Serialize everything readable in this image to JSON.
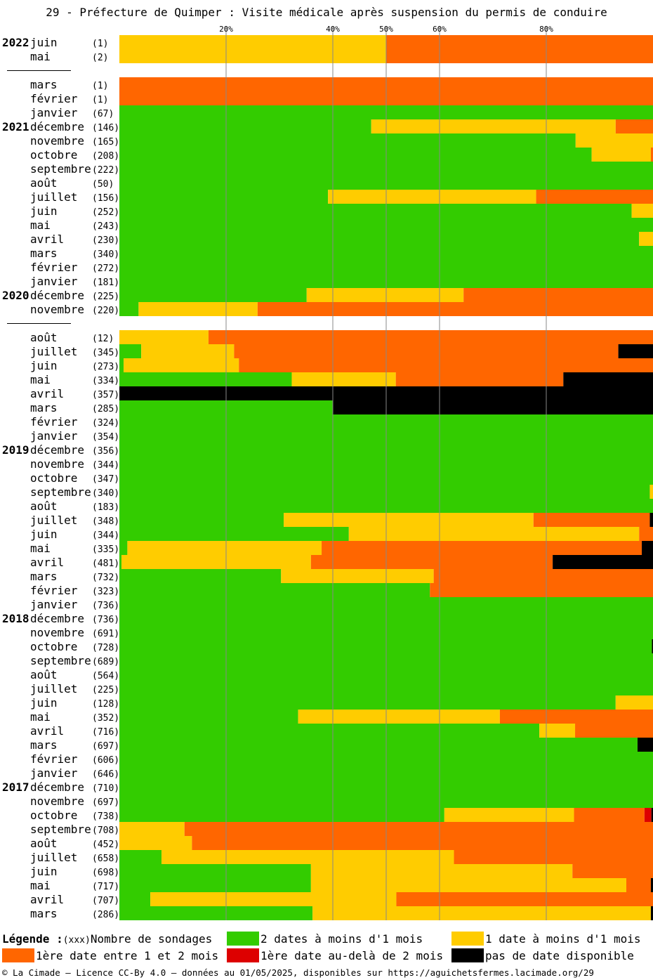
{
  "title": "29 - Préfecture de Quimper : Visite médicale après suspension du permis de conduire",
  "colors": {
    "green": "#33cc00",
    "yellow": "#ffcc00",
    "orange": "#ff6600",
    "red": "#dd0000",
    "black": "#000000",
    "grid": "#888888"
  },
  "legend": {
    "heading": "Légende :",
    "count_symbol": "(xxx)",
    "count_label": "Nombre de sondages",
    "green_label": "2 dates à moins d'1 mois",
    "yellow_label": "1 date à moins d'1 mois",
    "orange_label": "1ère date entre 1 et 2 mois",
    "red_label": "1ère date au-delà de 2 mois",
    "black_label": "pas de date disponible"
  },
  "footer": "© La Cimade – Licence CC-By 4.0 – données au 01/05/2025, disponibles sur https://aguichetsfermes.lacimade.org/29",
  "chart_data": {
    "type": "bar",
    "orientation": "horizontal",
    "stacked": true,
    "unit": "percent",
    "xlim": [
      0,
      100
    ],
    "gridlines": [
      20,
      40,
      50,
      60,
      80
    ],
    "gridline_labels": [
      "20%",
      "40%",
      "50%",
      "60%",
      "80%"
    ],
    "series_order": [
      "green",
      "yellow",
      "orange",
      "red",
      "black"
    ],
    "rows": [
      {
        "year": "2022",
        "month": "juin",
        "count": "(1)",
        "values": [
          0,
          50,
          50,
          0,
          0
        ]
      },
      {
        "month": "mai",
        "count": "(2)",
        "values": [
          0,
          50,
          50,
          0,
          0
        ]
      },
      {
        "gap": true
      },
      {
        "month": "mars",
        "count": "(1)",
        "values": [
          0,
          0,
          100,
          0,
          0
        ]
      },
      {
        "month": "février",
        "count": "(1)",
        "values": [
          0,
          0,
          100,
          0,
          0
        ]
      },
      {
        "month": "janvier",
        "count": "(67)",
        "values": [
          100,
          0,
          0,
          0,
          0
        ]
      },
      {
        "year": "2021",
        "month": "décembre",
        "count": "(146)",
        "values": [
          47.2,
          45.8,
          7.0,
          0,
          0
        ]
      },
      {
        "month": "novembre",
        "count": "(165)",
        "values": [
          85.5,
          14.5,
          0,
          0,
          0
        ]
      },
      {
        "month": "octobre",
        "count": "(208)",
        "values": [
          88.5,
          11.1,
          0.4,
          0,
          0
        ]
      },
      {
        "month": "septembre",
        "count": "(222)",
        "values": [
          100,
          0,
          0,
          0,
          0
        ]
      },
      {
        "month": "août",
        "count": "(50)",
        "values": [
          100,
          0,
          0,
          0,
          0
        ]
      },
      {
        "month": "juillet",
        "count": "(156)",
        "values": [
          39.1,
          39.0,
          21.9,
          0,
          0
        ]
      },
      {
        "month": "juin",
        "count": "(252)",
        "values": [
          96.0,
          4.0,
          0,
          0,
          0
        ]
      },
      {
        "month": "mai",
        "count": "(243)",
        "values": [
          100,
          0,
          0,
          0,
          0
        ]
      },
      {
        "month": "avril",
        "count": "(230)",
        "values": [
          97.4,
          2.6,
          0,
          0,
          0
        ]
      },
      {
        "month": "mars",
        "count": "(340)",
        "values": [
          100,
          0,
          0,
          0,
          0
        ]
      },
      {
        "month": "février",
        "count": "(272)",
        "values": [
          100,
          0,
          0,
          0,
          0
        ]
      },
      {
        "month": "janvier",
        "count": "(181)",
        "values": [
          100,
          0,
          0,
          0,
          0
        ]
      },
      {
        "year": "2020",
        "month": "décembre",
        "count": "(225)",
        "values": [
          35.1,
          29.4,
          35.5,
          0,
          0
        ]
      },
      {
        "month": "novembre",
        "count": "(220)",
        "values": [
          3.6,
          22.3,
          74.1,
          0,
          0
        ]
      },
      {
        "gap": true
      },
      {
        "month": "août",
        "count": "(12)",
        "values": [
          0,
          16.7,
          83.3,
          0,
          0
        ]
      },
      {
        "month": "juillet",
        "count": "(345)",
        "values": [
          4.1,
          17.4,
          72.0,
          0,
          6.5
        ]
      },
      {
        "month": "juin",
        "count": "(273)",
        "values": [
          0.8,
          21.6,
          77.6,
          0,
          0
        ]
      },
      {
        "month": "mai",
        "count": "(334)",
        "values": [
          32.3,
          19.5,
          31.4,
          0,
          16.8
        ]
      },
      {
        "month": "avril",
        "count": "(357)",
        "values": [
          0,
          0,
          0,
          0,
          100
        ]
      },
      {
        "month": "mars",
        "count": "(285)",
        "values": [
          40.0,
          0,
          0,
          0,
          60.0
        ]
      },
      {
        "month": "février",
        "count": "(324)",
        "values": [
          100,
          0,
          0,
          0,
          0
        ]
      },
      {
        "month": "janvier",
        "count": "(354)",
        "values": [
          100,
          0,
          0,
          0,
          0
        ]
      },
      {
        "year": "2019",
        "month": "décembre",
        "count": "(356)",
        "values": [
          100,
          0,
          0,
          0,
          0
        ]
      },
      {
        "month": "novembre",
        "count": "(344)",
        "values": [
          100,
          0,
          0,
          0,
          0
        ]
      },
      {
        "month": "octobre",
        "count": "(347)",
        "values": [
          100,
          0,
          0,
          0,
          0
        ]
      },
      {
        "month": "septembre",
        "count": "(340)",
        "values": [
          99.4,
          0.6,
          0,
          0,
          0
        ]
      },
      {
        "month": "août",
        "count": "(183)",
        "values": [
          100,
          0,
          0,
          0,
          0
        ]
      },
      {
        "month": "juillet",
        "count": "(348)",
        "values": [
          30.8,
          46.8,
          21.8,
          0,
          0.6
        ]
      },
      {
        "month": "juin",
        "count": "(344)",
        "values": [
          43.0,
          54.4,
          2.6,
          0,
          0
        ]
      },
      {
        "month": "mai",
        "count": "(335)",
        "values": [
          1.5,
          36.4,
          60.0,
          0,
          2.1
        ]
      },
      {
        "month": "avril",
        "count": "(481)",
        "values": [
          0.4,
          35.5,
          45.3,
          0,
          18.8
        ]
      },
      {
        "month": "mars",
        "count": "(732)",
        "values": [
          30.3,
          28.6,
          41.1,
          0,
          0
        ]
      },
      {
        "month": "février",
        "count": "(323)",
        "values": [
          58.2,
          0,
          41.8,
          0,
          0
        ]
      },
      {
        "month": "janvier",
        "count": "(736)",
        "values": [
          100,
          0,
          0,
          0,
          0
        ]
      },
      {
        "year": "2018",
        "month": "décembre",
        "count": "(736)",
        "values": [
          100,
          0,
          0,
          0,
          0
        ]
      },
      {
        "month": "novembre",
        "count": "(691)",
        "values": [
          100,
          0,
          0,
          0,
          0
        ]
      },
      {
        "month": "octobre",
        "count": "(728)",
        "values": [
          99.8,
          0,
          0,
          0,
          0.2
        ]
      },
      {
        "month": "septembre",
        "count": "(689)",
        "values": [
          100,
          0,
          0,
          0,
          0
        ]
      },
      {
        "month": "août",
        "count": "(564)",
        "values": [
          100,
          0,
          0,
          0,
          0
        ]
      },
      {
        "month": "juillet",
        "count": "(225)",
        "values": [
          100,
          0,
          0,
          0,
          0
        ]
      },
      {
        "month": "juin",
        "count": "(128)",
        "values": [
          93.0,
          7.0,
          0,
          0,
          0
        ]
      },
      {
        "month": "mai",
        "count": "(352)",
        "values": [
          33.5,
          37.8,
          28.7,
          0,
          0
        ]
      },
      {
        "month": "avril",
        "count": "(716)",
        "values": [
          78.7,
          6.7,
          14.6,
          0,
          0
        ]
      },
      {
        "month": "mars",
        "count": "(697)",
        "values": [
          97.1,
          0,
          0,
          0,
          2.9
        ]
      },
      {
        "month": "février",
        "count": "(606)",
        "values": [
          100,
          0,
          0,
          0,
          0
        ]
      },
      {
        "month": "janvier",
        "count": "(646)",
        "values": [
          100,
          0,
          0,
          0,
          0
        ]
      },
      {
        "year": "2017",
        "month": "décembre",
        "count": "(710)",
        "values": [
          100,
          0,
          0,
          0,
          0
        ]
      },
      {
        "month": "novembre",
        "count": "(697)",
        "values": [
          100,
          0,
          0,
          0,
          0
        ]
      },
      {
        "month": "octobre",
        "count": "(738)",
        "values": [
          60.9,
          24.3,
          13.2,
          1.3,
          0.3
        ]
      },
      {
        "month": "septembre",
        "count": "(708)",
        "values": [
          0,
          12.2,
          87.8,
          0,
          0
        ]
      },
      {
        "month": "août",
        "count": "(452)",
        "values": [
          0,
          13.6,
          86.4,
          0,
          0
        ]
      },
      {
        "month": "juillet",
        "count": "(658)",
        "values": [
          7.9,
          54.8,
          37.3,
          0,
          0
        ]
      },
      {
        "month": "juin",
        "count": "(698)",
        "values": [
          35.9,
          49.0,
          15.1,
          0,
          0
        ]
      },
      {
        "month": "mai",
        "count": "(717)",
        "values": [
          35.9,
          59.1,
          4.6,
          0,
          0.4
        ]
      },
      {
        "month": "avril",
        "count": "(707)",
        "values": [
          5.8,
          46.1,
          48.1,
          0,
          0
        ]
      },
      {
        "month": "mars",
        "count": "(286)",
        "values": [
          36.2,
          63.4,
          0,
          0,
          0.4
        ]
      }
    ]
  }
}
